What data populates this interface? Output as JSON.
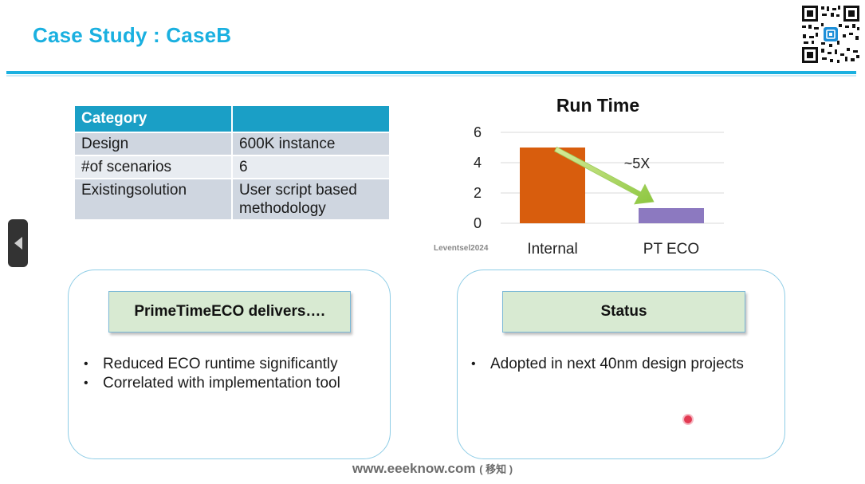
{
  "slide": {
    "title": "Case Study : CaseB"
  },
  "table": {
    "headers": [
      "Category",
      ""
    ],
    "rows": [
      [
        "Design",
        "600K instance"
      ],
      [
        "#of scenarios",
        "6"
      ],
      [
        "Existingsolution",
        "User script based methodology"
      ]
    ]
  },
  "chart_data": {
    "type": "bar",
    "title": "Run Time",
    "categories": [
      "Internal",
      "PT ECO"
    ],
    "values": [
      5,
      1
    ],
    "ylim": [
      0,
      6
    ],
    "yticks": [
      0,
      2,
      4,
      6
    ],
    "grid": true,
    "annotation": "~5X",
    "colors": [
      "#d85d0d",
      "#8c79c0"
    ],
    "credit": "Leventsel2024"
  },
  "panel_left": {
    "heading": "PrimeTimeECO delivers….",
    "bullets": [
      "Reduced ECO runtime significantly",
      "Correlated with implementation tool"
    ]
  },
  "panel_right": {
    "heading": "Status",
    "bullets": [
      "Adopted in next 40nm design projects"
    ]
  },
  "footer": {
    "site": "www.eeeknow.com",
    "sub": "( 移知 )"
  },
  "colors": {
    "accent": "#1ab0e0",
    "table_header": "#1a9fc6",
    "panel_heading_bg": "#d8ead2"
  },
  "icons": {
    "nav": "triangle-left-icon",
    "qr": "qr-code-icon"
  }
}
